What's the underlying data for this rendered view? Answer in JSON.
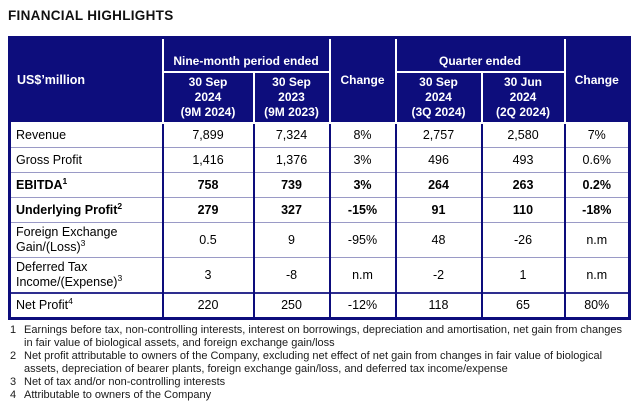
{
  "title": "FINANCIAL HIGHLIGHTS",
  "colors": {
    "header_bg": "#0D0D7C",
    "header_text": "#FFFFFF",
    "grid_line": "#9A9AC6",
    "total_rule": "#2E2E8F"
  },
  "table": {
    "unit_label": "US$’million",
    "group_headers": [
      "Nine-month period ended",
      "Quarter ended"
    ],
    "change_label": "Change",
    "col_headers": [
      [
        "30 Sep",
        "2024",
        "(9M 2024)"
      ],
      [
        "30 Sep",
        "2023",
        "(9M 2023)"
      ],
      [
        "30 Sep",
        "2024",
        "(3Q 2024)"
      ],
      [
        "30 Jun",
        "2024",
        "(2Q 2024)"
      ]
    ],
    "rows": [
      {
        "label": "Revenue",
        "sup": "",
        "bold": false,
        "top_rule": false,
        "values": [
          "7,899",
          "7,324",
          "8%",
          "2,757",
          "2,580",
          "7%"
        ]
      },
      {
        "label": "Gross Profit",
        "sup": "",
        "bold": false,
        "top_rule": false,
        "values": [
          "1,416",
          "1,376",
          "3%",
          "496",
          "493",
          "0.6%"
        ]
      },
      {
        "label": "EBITDA",
        "sup": "1",
        "bold": true,
        "top_rule": false,
        "values": [
          "758",
          "739",
          "3%",
          "264",
          "263",
          "0.2%"
        ]
      },
      {
        "label": "Underlying Profit",
        "sup": "2",
        "bold": true,
        "top_rule": false,
        "values": [
          "279",
          "327",
          "-15%",
          "91",
          "110",
          "-18%"
        ]
      },
      {
        "label": "Foreign Exchange Gain/(Loss)",
        "sup": "3",
        "bold": false,
        "top_rule": false,
        "values": [
          "0.5",
          "9",
          "-95%",
          "48",
          "-26",
          "n.m"
        ]
      },
      {
        "label": "Deferred Tax Income/(Expense)",
        "sup": "3",
        "bold": false,
        "top_rule": false,
        "values": [
          "3",
          "-8",
          "n.m",
          "-2",
          "1",
          "n.m"
        ]
      },
      {
        "label": "Net Profit",
        "sup": "4",
        "bold": false,
        "top_rule": true,
        "values": [
          "220",
          "250",
          "-12%",
          "118",
          "65",
          "80%"
        ]
      }
    ]
  },
  "footnotes": [
    {
      "num": "1",
      "text": "Earnings before tax, non-controlling interests, interest on borrowings, depreciation and amortisation, net gain from changes in fair value of biological assets, and foreign exchange gain/loss"
    },
    {
      "num": "2",
      "text": "Net profit attributable to owners of the Company, excluding net effect of net gain from changes in fair value of biological assets, depreciation of bearer plants, foreign exchange gain/loss, and deferred tax income/expense"
    },
    {
      "num": "3",
      "text": "Net of tax and/or non-controlling interests"
    },
    {
      "num": "4",
      "text": "Attributable to owners of the Company"
    }
  ]
}
